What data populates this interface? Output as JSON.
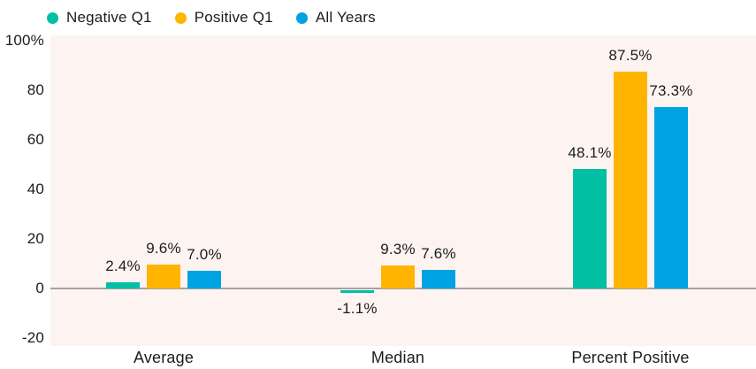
{
  "chart_data": {
    "type": "bar",
    "title": "",
    "categories": [
      "Average",
      "Median",
      "Percent Positive"
    ],
    "series": [
      {
        "name": "Negative Q1",
        "color": "#00BFA3",
        "values": [
          2.4,
          -1.1,
          48.1
        ],
        "labels": [
          "2.4%",
          "-1.1%",
          "48.1%"
        ]
      },
      {
        "name": "Positive Q1",
        "color": "#FFB400",
        "values": [
          9.6,
          9.3,
          87.5
        ],
        "labels": [
          "9.6%",
          "9.3%",
          "87.5%"
        ]
      },
      {
        "name": "All Years",
        "color": "#00A3E1",
        "values": [
          7.0,
          7.6,
          73.3
        ],
        "labels": [
          "7.0%",
          "7.6%",
          "73.3%"
        ]
      }
    ],
    "y_axis": {
      "ylim": [
        -20,
        100
      ],
      "gridlines": false,
      "ticks": [
        {
          "value": 100,
          "label": "100%"
        },
        {
          "value": 80,
          "label": "80"
        },
        {
          "value": 60,
          "label": "60"
        },
        {
          "value": 40,
          "label": "40"
        },
        {
          "value": 20,
          "label": "20"
        },
        {
          "value": 0,
          "label": "0"
        },
        {
          "value": -20,
          "label": "-20"
        }
      ]
    },
    "legend_position": "top-left",
    "colors": {
      "page_background": "#FFFFFF",
      "plot_background": "#FDF4F2",
      "zero_line": "#A3A3A3",
      "text": "#1C1C1C"
    }
  }
}
